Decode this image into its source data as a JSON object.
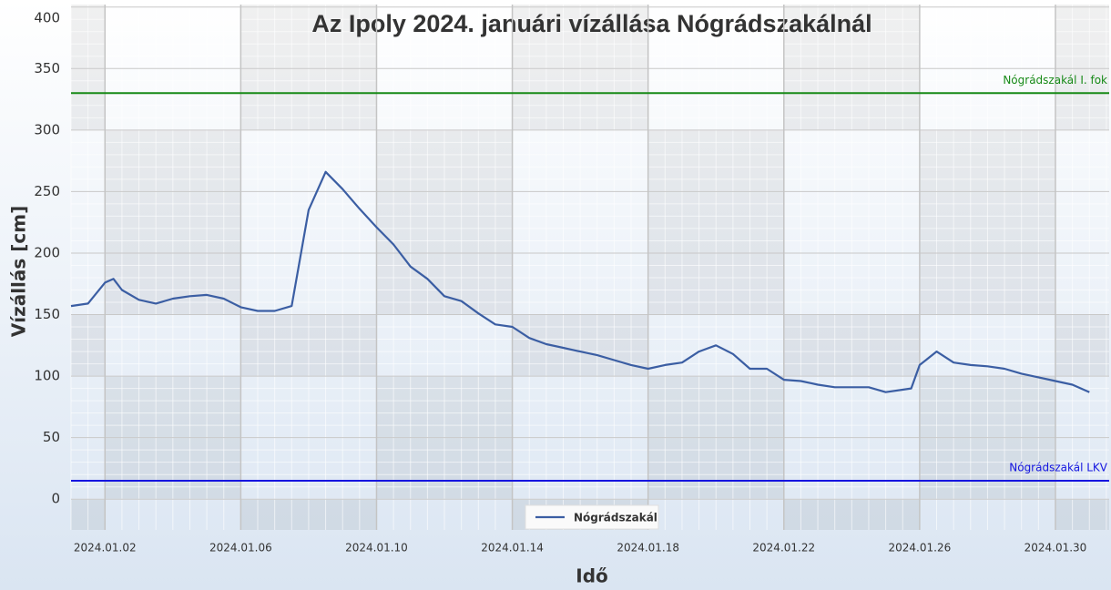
{
  "chart_data": {
    "type": "line",
    "title": "Az Ipoly 2024. januári vízállása Nógrádszakálnál",
    "x_label": "Idő",
    "y_label": "Vízállás [cm]",
    "xlim": [
      "2024-01-01 00:00",
      "2024-01-31 14:00"
    ],
    "xticks": [
      {
        "value": "2024-01-02 00:00",
        "label": "2024.01.02"
      },
      {
        "value": "2024-01-06 00:00",
        "label": "2024.01.06"
      },
      {
        "value": "2024-01-10 00:00",
        "label": "2024.01.10"
      },
      {
        "value": "2024-01-14 00:00",
        "label": "2024.01.14"
      },
      {
        "value": "2024-01-18 00:00",
        "label": "2024.01.18"
      },
      {
        "value": "2024-01-22 00:00",
        "label": "2024.01.22"
      },
      {
        "value": "2024-01-26 00:00",
        "label": "2024.01.26"
      },
      {
        "value": "2024-01-30 00:00",
        "label": "2024.01.30"
      }
    ],
    "ylim": [
      -25,
      402
    ],
    "yticks": [
      0,
      50,
      100,
      150,
      200,
      250,
      300,
      350,
      400
    ],
    "grid": true,
    "legend": "bottom",
    "x": [
      "2024-01-01 00:00",
      "2024-01-01 12:00",
      "2024-01-02 00:00",
      "2024-01-02 06:00",
      "2024-01-02 12:00",
      "2024-01-03 00:00",
      "2024-01-03 12:00",
      "2024-01-04 00:00",
      "2024-01-04 12:00",
      "2024-01-05 00:00",
      "2024-01-05 12:00",
      "2024-01-06 00:00",
      "2024-01-06 12:00",
      "2024-01-07 00:00",
      "2024-01-07 12:00",
      "2024-01-08 00:00",
      "2024-01-08 12:00",
      "2024-01-09 00:00",
      "2024-01-09 12:00",
      "2024-01-10 00:00",
      "2024-01-10 12:00",
      "2024-01-11 00:00",
      "2024-01-11 12:00",
      "2024-01-12 00:00",
      "2024-01-12 12:00",
      "2024-01-13 00:00",
      "2024-01-13 12:00",
      "2024-01-14 00:00",
      "2024-01-14 12:00",
      "2024-01-15 00:00",
      "2024-01-15 12:00",
      "2024-01-16 00:00",
      "2024-01-16 12:00",
      "2024-01-17 00:00",
      "2024-01-17 12:00",
      "2024-01-18 00:00",
      "2024-01-18 12:00",
      "2024-01-19 00:00",
      "2024-01-19 12:00",
      "2024-01-20 00:00",
      "2024-01-20 12:00",
      "2024-01-21 00:00",
      "2024-01-21 12:00",
      "2024-01-22 00:00",
      "2024-01-22 12:00",
      "2024-01-23 00:00",
      "2024-01-23 12:00",
      "2024-01-24 00:00",
      "2024-01-24 12:00",
      "2024-01-25 00:00",
      "2024-01-25 12:00",
      "2024-01-25 18:00",
      "2024-01-26 00:00",
      "2024-01-26 12:00",
      "2024-01-27 00:00",
      "2024-01-27 12:00",
      "2024-01-28 00:00",
      "2024-01-28 12:00",
      "2024-01-29 00:00",
      "2024-01-29 12:00",
      "2024-01-30 00:00",
      "2024-01-30 12:00",
      "2024-01-31 00:00"
    ],
    "series": [
      {
        "name": "Nógrádszakál",
        "color": "#3b5ea3",
        "values": [
          157,
          159,
          176,
          179,
          170,
          162,
          159,
          163,
          165,
          166,
          163,
          156,
          153,
          153,
          157,
          235,
          266,
          252,
          236,
          221,
          207,
          189,
          179,
          165,
          161,
          151,
          142,
          140,
          131,
          126,
          123,
          120,
          117,
          113,
          109,
          106,
          109,
          111,
          120,
          125,
          118,
          106,
          106,
          97,
          96,
          93,
          91,
          91,
          91,
          87,
          89,
          90,
          109,
          120,
          111,
          109,
          108,
          106,
          102,
          99,
          96,
          93,
          87
        ]
      }
    ],
    "reference_lines": [
      {
        "label": "Nógrádszakál I. fok",
        "value": 330,
        "color": "#178a17"
      },
      {
        "label": "Nógrádszakál LKV",
        "value": 15,
        "color": "#1515e0"
      }
    ]
  }
}
